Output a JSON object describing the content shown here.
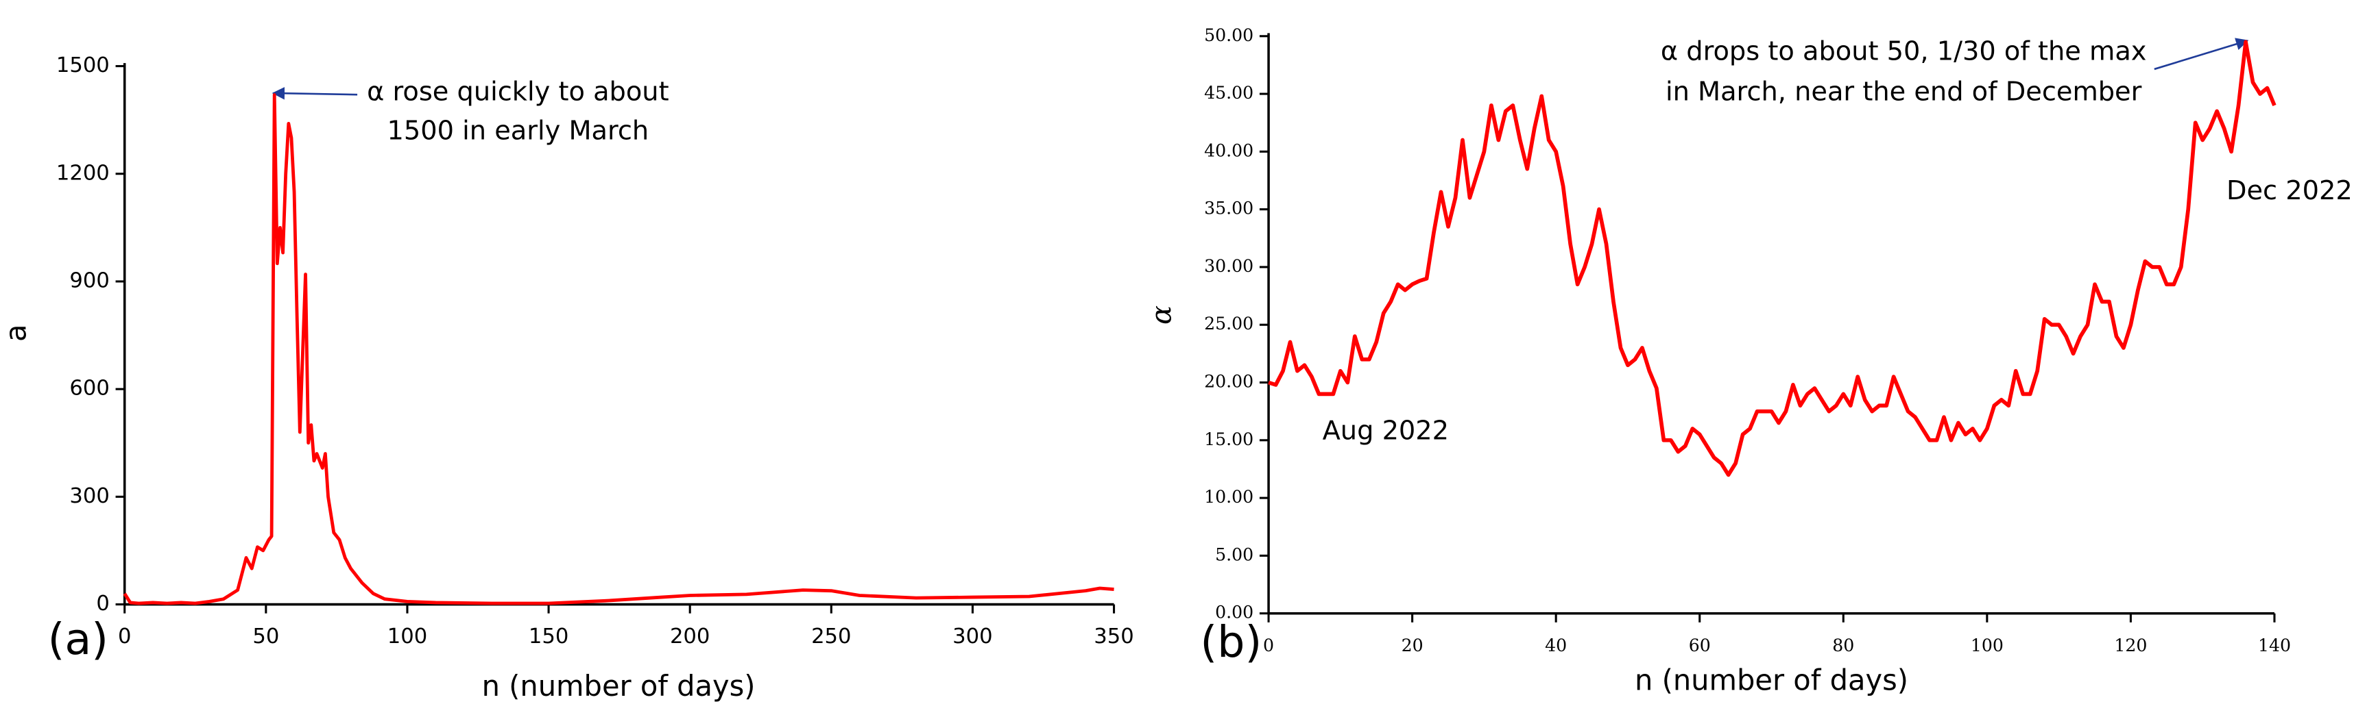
{
  "chart_data": [
    {
      "type": "line",
      "panel_label": "(a)",
      "xlabel": "n (number of days)",
      "ylabel": "a",
      "annotations": [
        "α rose quickly to about",
        "1500 in early March"
      ],
      "xlim": [
        0,
        350
      ],
      "xticks": [
        0,
        50,
        100,
        150,
        200,
        250,
        300,
        350
      ],
      "ylim": [
        0,
        1500
      ],
      "yticks": [
        0,
        300,
        600,
        900,
        1200,
        1500
      ],
      "series": [
        {
          "color": "#ff0000",
          "x": [
            0,
            2,
            5,
            10,
            15,
            20,
            25,
            30,
            35,
            40,
            43,
            45,
            47,
            49,
            51,
            52,
            53,
            54,
            55,
            56,
            57,
            58,
            59,
            60,
            61,
            62,
            63,
            64,
            65,
            66,
            67,
            68,
            70,
            71,
            72,
            74,
            76,
            78,
            80,
            84,
            88,
            92,
            100,
            110,
            130,
            150,
            170,
            190,
            200,
            220,
            240,
            250,
            260,
            280,
            300,
            320,
            340,
            345,
            350
          ],
          "values": [
            30,
            5,
            3,
            5,
            3,
            5,
            3,
            8,
            15,
            40,
            130,
            100,
            160,
            150,
            180,
            190,
            1420,
            950,
            1050,
            980,
            1200,
            1340,
            1300,
            1150,
            800,
            480,
            700,
            920,
            450,
            500,
            400,
            420,
            380,
            420,
            300,
            200,
            180,
            130,
            100,
            60,
            30,
            15,
            8,
            5,
            3,
            3,
            10,
            20,
            25,
            28,
            40,
            38,
            25,
            18,
            20,
            22,
            38,
            45,
            42
          ]
        }
      ]
    },
    {
      "type": "line",
      "panel_label": "(b)",
      "xlabel": "n (number of days)",
      "ylabel": "α",
      "annotations": [
        "α drops to about 50, 1/30 of the max",
        "in March, near the end of December",
        "Aug 2022",
        "Dec 2022"
      ],
      "xlim": [
        0,
        140
      ],
      "xticks": [
        0,
        20,
        40,
        60,
        80,
        100,
        120,
        140
      ],
      "ylim": [
        0,
        50
      ],
      "yticks": [
        {
          "value": 0,
          "label": "0.00"
        },
        {
          "value": 5,
          "label": "5.00"
        },
        {
          "value": 10,
          "label": "10.00"
        },
        {
          "value": 15,
          "label": "15.00"
        },
        {
          "value": 20,
          "label": "20.00"
        },
        {
          "value": 25,
          "label": "25.00"
        },
        {
          "value": 30,
          "label": "30.00"
        },
        {
          "value": 35,
          "label": "35.00"
        },
        {
          "value": 40,
          "label": "40.00"
        },
        {
          "value": 45,
          "label": "45.00"
        },
        {
          "value": 50,
          "label": "50.00"
        }
      ],
      "series": [
        {
          "color": "#ff0000",
          "x": [
            0,
            1,
            2,
            3,
            4,
            5,
            6,
            7,
            8,
            9,
            10,
            11,
            12,
            13,
            14,
            15,
            16,
            17,
            18,
            19,
            20,
            21,
            22,
            23,
            24,
            25,
            26,
            27,
            28,
            29,
            30,
            31,
            32,
            33,
            34,
            35,
            36,
            37,
            38,
            39,
            40,
            41,
            42,
            43,
            44,
            45,
            46,
            47,
            48,
            49,
            50,
            51,
            52,
            53,
            54,
            55,
            56,
            57,
            58,
            59,
            60,
            61,
            62,
            63,
            64,
            65,
            66,
            67,
            68,
            69,
            70,
            71,
            72,
            73,
            74,
            75,
            76,
            77,
            78,
            79,
            80,
            81,
            82,
            83,
            84,
            85,
            86,
            87,
            88,
            89,
            90,
            91,
            92,
            93,
            94,
            95,
            96,
            97,
            98,
            99,
            100,
            101,
            102,
            103,
            104,
            105,
            106,
            107,
            108,
            109,
            110,
            111,
            112,
            113,
            114,
            115,
            116,
            117,
            118,
            119,
            120,
            121,
            122,
            123,
            124,
            125,
            126,
            127,
            128,
            129,
            130,
            131,
            132,
            133,
            134,
            135,
            136,
            137,
            138,
            139,
            140
          ],
          "values": [
            20,
            19.8,
            21,
            23.5,
            21,
            21.5,
            20.5,
            19,
            19,
            19,
            21,
            20,
            24,
            22,
            22,
            23.5,
            26,
            27,
            28.5,
            28,
            28.5,
            28.8,
            29,
            33,
            36.5,
            33.5,
            36,
            41,
            36,
            38,
            40,
            44,
            41,
            43.5,
            44,
            41,
            38.5,
            42,
            44.8,
            41,
            40,
            37,
            32,
            28.5,
            30,
            32,
            35,
            32,
            27,
            23,
            21.5,
            22,
            23,
            21,
            19.5,
            15,
            15,
            14,
            14.5,
            16,
            15.5,
            14.5,
            13.5,
            13,
            12,
            13,
            15.5,
            16,
            17.5,
            17.5,
            17.5,
            16.5,
            17.5,
            19.8,
            18,
            19,
            19.5,
            18.5,
            17.5,
            18,
            19,
            18,
            20.5,
            18.5,
            17.5,
            18,
            18,
            20.5,
            19,
            17.5,
            17,
            16,
            15,
            15,
            17,
            15,
            16.5,
            15.5,
            16,
            15,
            16,
            18,
            18.5,
            18,
            21,
            19,
            19,
            21,
            25.5,
            25,
            25,
            24,
            22.5,
            24,
            25,
            28.5,
            27,
            27,
            24,
            23,
            25,
            28,
            30.5,
            30,
            30,
            28.5,
            28.5,
            30,
            35,
            42.5,
            41,
            42,
            43.5,
            42,
            40,
            44,
            49.5,
            46,
            45,
            45.5,
            44
          ]
        }
      ]
    }
  ]
}
